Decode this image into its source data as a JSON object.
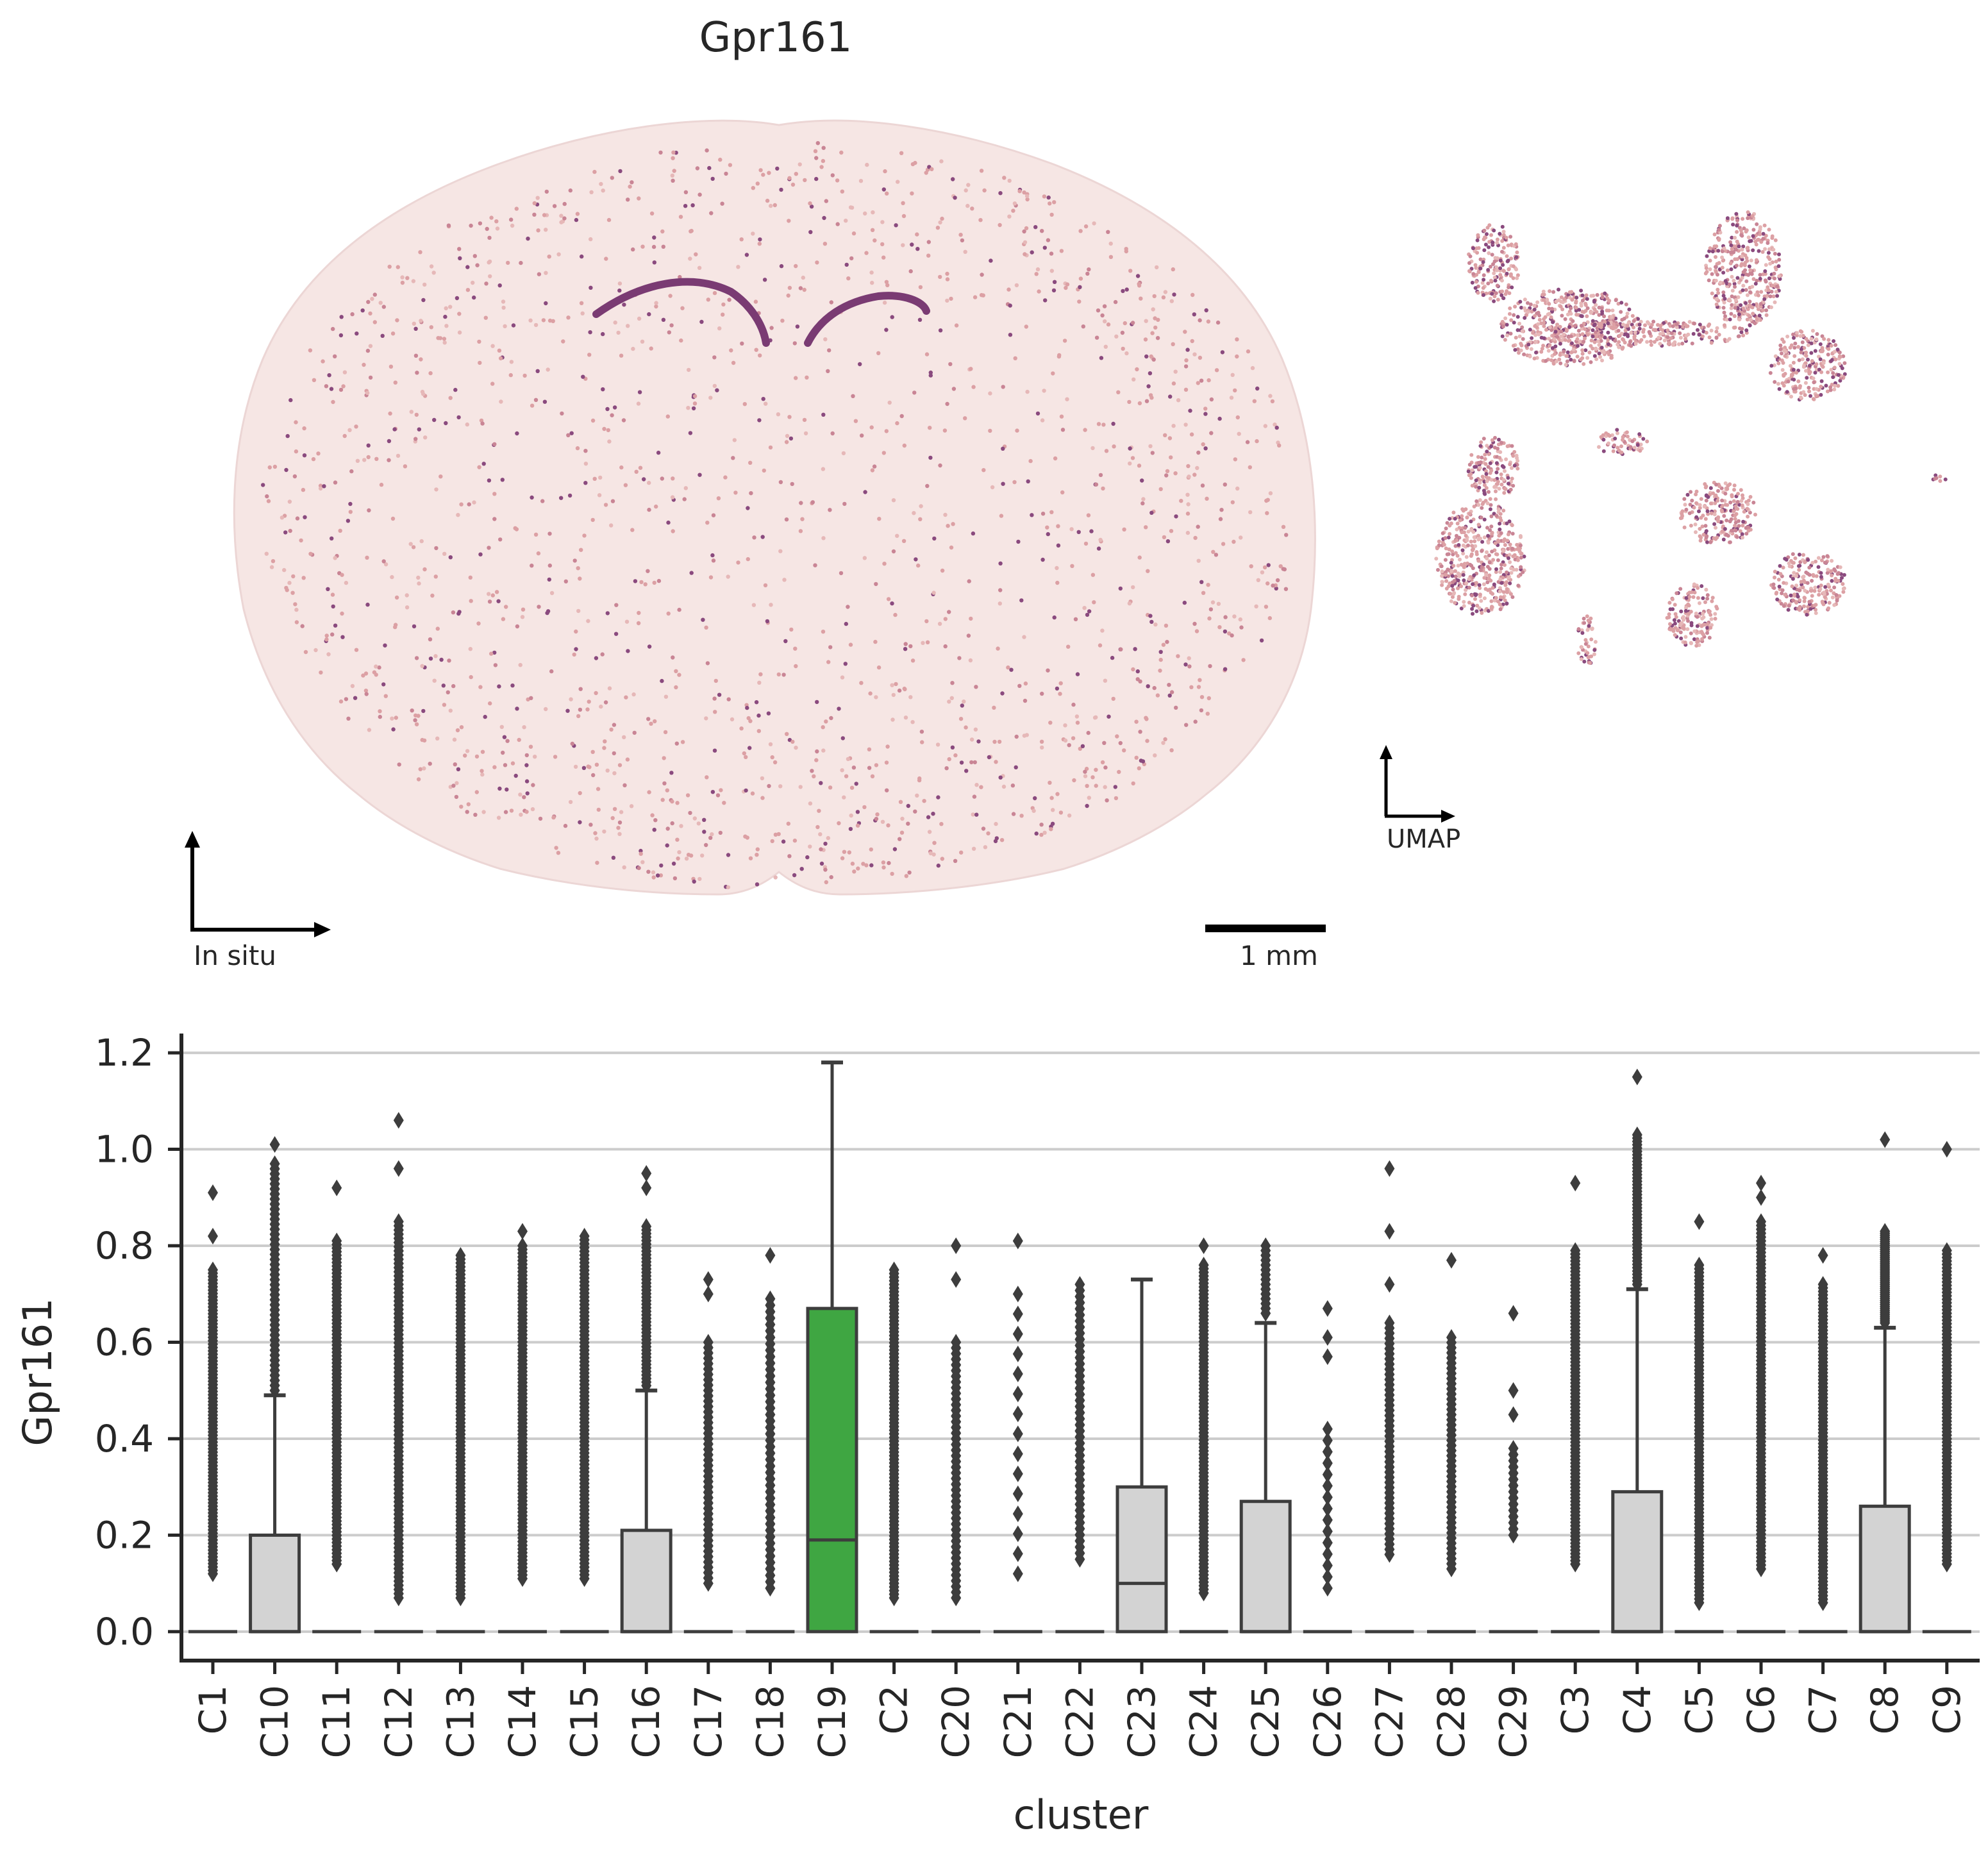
{
  "figure": {
    "title": "Gpr161",
    "insitu_label": "In situ",
    "scalebar_label": "1 mm",
    "umap_label": "UMAP",
    "palette": {
      "low": "#f6e6e4",
      "mid": "#dca0a4",
      "high": "#8a4a7e",
      "highlight": "#3fa642",
      "box": "#d3d3d3",
      "stroke": "#3d3d3d"
    }
  },
  "chart_data": {
    "type": "box",
    "title": "",
    "xlabel": "cluster",
    "ylabel": "Gpr161",
    "ylim": [
      -0.06,
      1.24
    ],
    "yticks": [
      0.0,
      0.2,
      0.4,
      0.6,
      0.8,
      1.0,
      1.2
    ],
    "ytick_labels": [
      "0.0",
      "0.2",
      "0.4",
      "0.6",
      "0.8",
      "1.0",
      "1.2"
    ],
    "grid": "horizontal",
    "highlight_category": "C19",
    "categories": [
      "C1",
      "C10",
      "C11",
      "C12",
      "C13",
      "C14",
      "C15",
      "C16",
      "C17",
      "C18",
      "C19",
      "C2",
      "C20",
      "C21",
      "C22",
      "C23",
      "C24",
      "C25",
      "C26",
      "C27",
      "C28",
      "C29",
      "C3",
      "C4",
      "C5",
      "C6",
      "C7",
      "C8",
      "C9"
    ],
    "boxes": [
      {
        "q1": 0,
        "median": 0,
        "q3": 0,
        "whislo": 0,
        "whishi": 0,
        "fliers_range": [
          0.12,
          0.75
        ],
        "fliers_extra": [
          0.82,
          0.91
        ],
        "density": "high"
      },
      {
        "q1": 0,
        "median": 0,
        "q3": 0.2,
        "whislo": 0,
        "whishi": 0.49,
        "fliers_range": [
          0.5,
          0.97
        ],
        "fliers_extra": [
          1.01
        ],
        "density": "medium"
      },
      {
        "q1": 0,
        "median": 0,
        "q3": 0,
        "whislo": 0,
        "whishi": 0,
        "fliers_range": [
          0.14,
          0.81
        ],
        "fliers_extra": [
          0.92
        ],
        "density": "high"
      },
      {
        "q1": 0,
        "median": 0,
        "q3": 0,
        "whislo": 0,
        "whishi": 0,
        "fliers_range": [
          0.07,
          0.85
        ],
        "fliers_extra": [
          0.96,
          1.06
        ],
        "density": "high"
      },
      {
        "q1": 0,
        "median": 0,
        "q3": 0,
        "whislo": 0,
        "whishi": 0,
        "fliers_range": [
          0.07,
          0.78
        ],
        "fliers_extra": [],
        "density": "high"
      },
      {
        "q1": 0,
        "median": 0,
        "q3": 0,
        "whislo": 0,
        "whishi": 0,
        "fliers_range": [
          0.11,
          0.8
        ],
        "fliers_extra": [
          0.83
        ],
        "density": "high"
      },
      {
        "q1": 0,
        "median": 0,
        "q3": 0,
        "whislo": 0,
        "whishi": 0,
        "fliers_range": [
          0.11,
          0.82
        ],
        "fliers_extra": [],
        "density": "high"
      },
      {
        "q1": 0,
        "median": 0,
        "q3": 0.21,
        "whislo": 0,
        "whishi": 0.5,
        "fliers_range": [
          0.51,
          0.84
        ],
        "fliers_extra": [
          0.92,
          0.95
        ],
        "density": "medium"
      },
      {
        "q1": 0,
        "median": 0,
        "q3": 0,
        "whislo": 0,
        "whishi": 0,
        "fliers_range": [
          0.1,
          0.6
        ],
        "fliers_extra": [
          0.7,
          0.73
        ],
        "density": "medium"
      },
      {
        "q1": 0,
        "median": 0,
        "q3": 0,
        "whislo": 0,
        "whishi": 0,
        "fliers_range": [
          0.09,
          0.69
        ],
        "fliers_extra": [
          0.78
        ],
        "density": "medium"
      },
      {
        "q1": 0,
        "median": 0.19,
        "q3": 0.67,
        "whislo": 0,
        "whishi": 1.18,
        "fliers_range": [],
        "fliers_extra": [],
        "density": "none"
      },
      {
        "q1": 0,
        "median": 0,
        "q3": 0,
        "whislo": 0,
        "whishi": 0,
        "fliers_range": [
          0.07,
          0.75
        ],
        "fliers_extra": [],
        "density": "high"
      },
      {
        "q1": 0,
        "median": 0,
        "q3": 0,
        "whislo": 0,
        "whishi": 0,
        "fliers_range": [
          0.07,
          0.6
        ],
        "fliers_extra": [
          0.73,
          0.8
        ],
        "density": "medium"
      },
      {
        "q1": 0,
        "median": 0,
        "q3": 0,
        "whislo": 0,
        "whishi": 0,
        "fliers_range": [
          0.12,
          0.7
        ],
        "fliers_extra": [
          0.81
        ],
        "density": "low"
      },
      {
        "q1": 0,
        "median": 0,
        "q3": 0,
        "whislo": 0,
        "whishi": 0,
        "fliers_range": [
          0.15,
          0.72
        ],
        "fliers_extra": [],
        "density": "medium"
      },
      {
        "q1": 0,
        "median": 0.1,
        "q3": 0.3,
        "whislo": 0,
        "whishi": 0.73,
        "fliers_range": [],
        "fliers_extra": [],
        "density": "none"
      },
      {
        "q1": 0,
        "median": 0,
        "q3": 0,
        "whislo": 0,
        "whishi": 0,
        "fliers_range": [
          0.08,
          0.76
        ],
        "fliers_extra": [
          0.8
        ],
        "density": "high"
      },
      {
        "q1": 0,
        "median": 0,
        "q3": 0.27,
        "whislo": 0,
        "whishi": 0.64,
        "fliers_range": [
          0.66,
          0.8
        ],
        "fliers_extra": [],
        "density": "low"
      },
      {
        "q1": 0,
        "median": 0,
        "q3": 0,
        "whislo": 0,
        "whishi": 0,
        "fliers_range": [
          0.09,
          0.42
        ],
        "fliers_extra": [
          0.57,
          0.61,
          0.67
        ],
        "density": "low"
      },
      {
        "q1": 0,
        "median": 0,
        "q3": 0,
        "whislo": 0,
        "whishi": 0,
        "fliers_range": [
          0.16,
          0.64
        ],
        "fliers_extra": [
          0.72,
          0.83,
          0.96
        ],
        "density": "medium"
      },
      {
        "q1": 0,
        "median": 0,
        "q3": 0,
        "whislo": 0,
        "whishi": 0,
        "fliers_range": [
          0.13,
          0.61
        ],
        "fliers_extra": [
          0.77
        ],
        "density": "medium"
      },
      {
        "q1": 0,
        "median": 0,
        "q3": 0,
        "whislo": 0,
        "whishi": 0,
        "fliers_range": [
          0.2,
          0.38
        ],
        "fliers_extra": [
          0.45,
          0.5,
          0.66
        ],
        "density": "low"
      },
      {
        "q1": 0,
        "median": 0,
        "q3": 0,
        "whislo": 0,
        "whishi": 0,
        "fliers_range": [
          0.14,
          0.79
        ],
        "fliers_extra": [
          0.93
        ],
        "density": "high"
      },
      {
        "q1": 0,
        "median": 0,
        "q3": 0.29,
        "whislo": 0,
        "whishi": 0.71,
        "fliers_range": [
          0.72,
          1.03
        ],
        "fliers_extra": [
          1.15
        ],
        "density": "medium"
      },
      {
        "q1": 0,
        "median": 0,
        "q3": 0,
        "whislo": 0,
        "whishi": 0,
        "fliers_range": [
          0.06,
          0.76
        ],
        "fliers_extra": [
          0.85
        ],
        "density": "high"
      },
      {
        "q1": 0,
        "median": 0,
        "q3": 0,
        "whislo": 0,
        "whishi": 0,
        "fliers_range": [
          0.13,
          0.85
        ],
        "fliers_extra": [
          0.9,
          0.93
        ],
        "density": "high"
      },
      {
        "q1": 0,
        "median": 0,
        "q3": 0,
        "whislo": 0,
        "whishi": 0,
        "fliers_range": [
          0.06,
          0.72
        ],
        "fliers_extra": [
          0.78
        ],
        "density": "high"
      },
      {
        "q1": 0,
        "median": 0,
        "q3": 0.26,
        "whislo": 0,
        "whishi": 0.63,
        "fliers_range": [
          0.64,
          0.83
        ],
        "fliers_extra": [
          1.02
        ],
        "density": "medium"
      },
      {
        "q1": 0,
        "median": 0,
        "q3": 0,
        "whislo": 0,
        "whishi": 0,
        "fliers_range": [
          0.14,
          0.79
        ],
        "fliers_extra": [
          1.0
        ],
        "density": "high"
      }
    ]
  }
}
